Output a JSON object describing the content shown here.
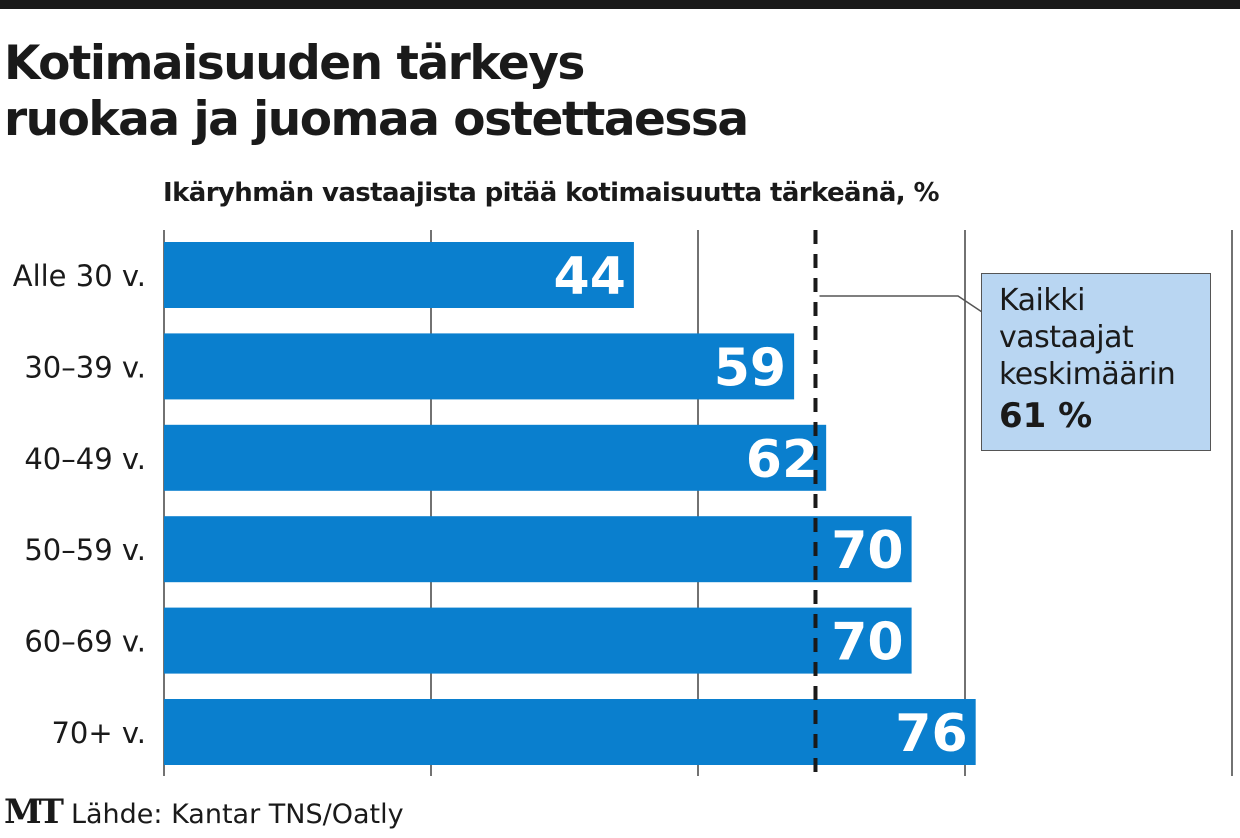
{
  "title_lines": [
    "Kotimaisuuden tärkeys",
    "ruokaa ja juomaa ostettaessa"
  ],
  "subtitle": "Ikäryhmän vastaajista pitää kotimaisuutta tärkeänä, %",
  "source": {
    "logo": "MT",
    "text": "Lähde: Kantar TNS/Oatly"
  },
  "note": {
    "lines": [
      "Kaikki",
      "vastaajat",
      "keskimäärin"
    ],
    "value": "61 %"
  },
  "colors": {
    "bar": "#0a7fce",
    "bar_label": "#ffffff",
    "note_box": "#b9d6f2",
    "grid": "#444444"
  },
  "chart_data": {
    "type": "bar",
    "orientation": "horizontal",
    "categories": [
      "Alle 30 v.",
      "30–39 v.",
      "40–49 v.",
      "50–59 v.",
      "60–69 v.",
      "70+ v."
    ],
    "values": [
      44,
      59,
      62,
      70,
      70,
      76
    ],
    "xlim": [
      0,
      100
    ],
    "gridlines_x": [
      0,
      25,
      50,
      75,
      100
    ],
    "reference_line": {
      "value": 61,
      "style": "dashed"
    },
    "grid": true,
    "legend": "none"
  }
}
